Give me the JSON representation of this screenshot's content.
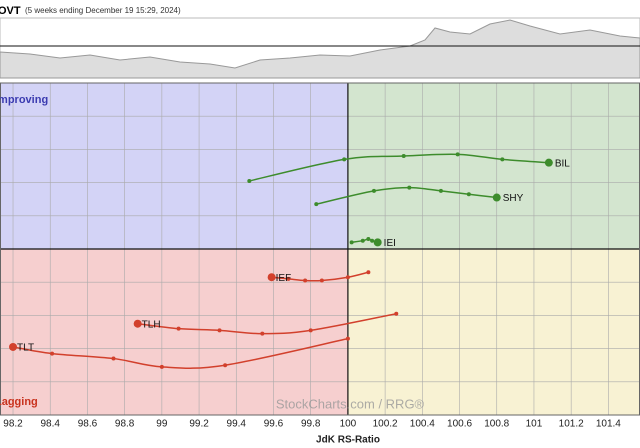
{
  "chart_data": {
    "type": "rrg",
    "title": "OVT",
    "subtitle": "(5 weeks ending December 19 15:29, 2024)",
    "x_label": "JdK RS-Ratio",
    "watermark": "StockCharts.com / RRG®",
    "quadrants": {
      "improving": "Improving",
      "lagging": "Lagging"
    },
    "xlim": [
      98.13,
      101.57
    ],
    "ylim": [
      99.0,
      101.0
    ],
    "xticks": [
      98.2,
      98.4,
      98.6,
      98.8,
      99,
      99.2,
      99.4,
      99.6,
      99.8,
      100,
      100.2,
      100.4,
      100.6,
      100.8,
      101,
      101.2,
      101.4
    ],
    "yticks": [
      99.2,
      99.4,
      99.6,
      99.8,
      100,
      100.2,
      100.4,
      100.6,
      100.8
    ],
    "grid": true,
    "series": [
      {
        "name": "BIL",
        "color": "#3d8c2c",
        "x": [
          99.47,
          99.98,
          100.3,
          100.59,
          100.83,
          101.08
        ],
        "values": [
          100.41,
          100.54,
          100.56,
          100.57,
          100.54,
          100.52
        ]
      },
      {
        "name": "SHY",
        "color": "#3d8c2c",
        "x": [
          99.83,
          100.14,
          100.33,
          100.5,
          100.65,
          100.8
        ],
        "values": [
          100.27,
          100.35,
          100.37,
          100.35,
          100.33,
          100.31
        ]
      },
      {
        "name": "IEI",
        "color": "#3d8c2c",
        "x": [
          100.02,
          100.08,
          100.11,
          100.13,
          100.16
        ],
        "values": [
          100.04,
          100.05,
          100.06,
          100.05,
          100.04
        ]
      },
      {
        "name": "IEF",
        "color": "#d2402c",
        "x": [
          100.11,
          100.0,
          99.86,
          99.77,
          99.68,
          99.59
        ],
        "values": [
          99.86,
          99.83,
          99.81,
          99.81,
          99.82,
          99.83
        ]
      },
      {
        "name": "TLH",
        "color": "#d2402c",
        "x": [
          100.26,
          99.8,
          99.54,
          99.31,
          99.09,
          98.87
        ],
        "values": [
          99.61,
          99.51,
          99.49,
          99.51,
          99.52,
          99.55
        ]
      },
      {
        "name": "TLT",
        "color": "#d2402c",
        "x": [
          100.0,
          99.34,
          99.0,
          98.74,
          98.41,
          98.2
        ],
        "values": [
          99.46,
          99.3,
          99.29,
          99.34,
          99.37,
          99.41
        ]
      }
    ]
  }
}
